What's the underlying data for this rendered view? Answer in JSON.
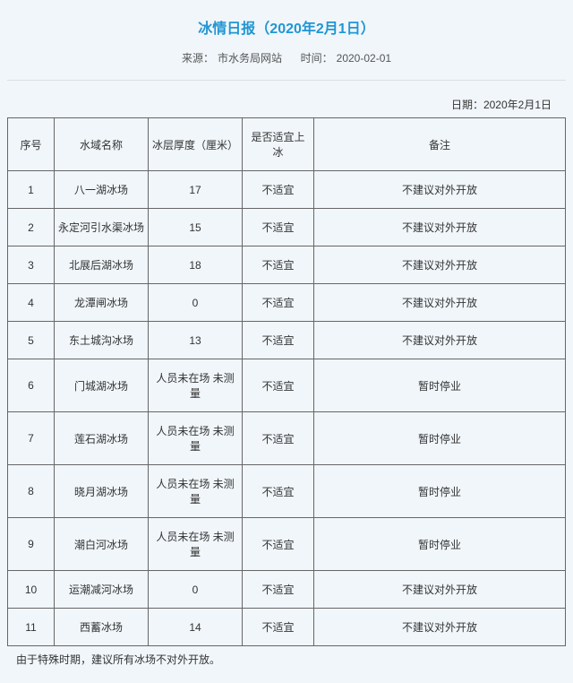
{
  "title": "冰情日报（2020年2月1日）",
  "source_label": "来源：",
  "source_value": "市水务局网站",
  "time_label": "时间：",
  "time_value": "2020-02-01",
  "date_line": "日期：2020年2月1日",
  "columns": {
    "idx": "序号",
    "name": "水域名称",
    "thickness": "冰层厚度（厘米）",
    "suitable": "是否适宜上冰",
    "note": "备注"
  },
  "rows": [
    {
      "idx": "1",
      "name": "八一湖冰场",
      "thickness": "17",
      "suitable": "不适宜",
      "note": "不建议对外开放"
    },
    {
      "idx": "2",
      "name": "永定河引水渠冰场",
      "thickness": "15",
      "suitable": "不适宜",
      "note": "不建议对外开放"
    },
    {
      "idx": "3",
      "name": "北展后湖冰场",
      "thickness": "18",
      "suitable": "不适宜",
      "note": "不建议对外开放"
    },
    {
      "idx": "4",
      "name": "龙潭闸冰场",
      "thickness": "0",
      "suitable": "不适宜",
      "note": "不建议对外开放"
    },
    {
      "idx": "5",
      "name": "东土城沟冰场",
      "thickness": "13",
      "suitable": "不适宜",
      "note": "不建议对外开放"
    },
    {
      "idx": "6",
      "name": "门城湖冰场",
      "thickness": "人员未在场 未测量",
      "suitable": "不适宜",
      "note": "暂时停业"
    },
    {
      "idx": "7",
      "name": "莲石湖冰场",
      "thickness": "人员未在场 未测量",
      "suitable": "不适宜",
      "note": "暂时停业"
    },
    {
      "idx": "8",
      "name": "晓月湖冰场",
      "thickness": "人员未在场 未测量",
      "suitable": "不适宜",
      "note": "暂时停业"
    },
    {
      "idx": "9",
      "name": "潮白河冰场",
      "thickness": "人员未在场 未测量",
      "suitable": "不适宜",
      "note": "暂时停业"
    },
    {
      "idx": "10",
      "name": "运潮减河冰场",
      "thickness": "0",
      "suitable": "不适宜",
      "note": "不建议对外开放"
    },
    {
      "idx": "11",
      "name": "西蓄冰场",
      "thickness": "14",
      "suitable": "不适宜",
      "note": "不建议对外开放"
    }
  ],
  "footnote": "由于特殊时期，建议所有冰场不对外开放。"
}
